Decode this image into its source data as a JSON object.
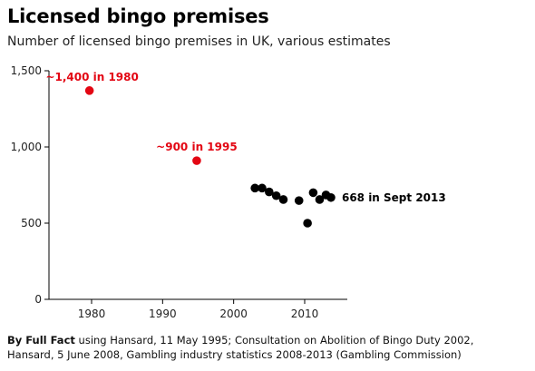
{
  "title": "Licensed bingo premises",
  "subtitle": "Number of licensed bingo premises in UK, various estimates",
  "footer": {
    "bold": "By Full Fact",
    "rest": " using Hansard, 11 May 1995; Consultation on Abolition of Bingo Duty 2002,",
    "line2": "Hansard, 5 June 2008, Gambling industry statistics 2008-2013 (Gambling Commission)"
  },
  "chart_data": {
    "type": "scatter",
    "title": "Licensed bingo premises",
    "subtitle": "Number of licensed bingo premises in UK, various estimates",
    "xlabel": "",
    "ylabel": "",
    "xlim": [
      1974,
      2016
    ],
    "ylim": [
      0,
      1500
    ],
    "xticks": [
      1980,
      1990,
      2000,
      2010
    ],
    "yticks": [
      0,
      500,
      1000,
      1500
    ],
    "ytick_labels": [
      "0",
      "500",
      "1,000",
      "1,500"
    ],
    "grid": false,
    "highlight_color": "#e30613",
    "point_color": "#000000",
    "highlighted_points": [
      {
        "x": 1979.7,
        "y": 1370,
        "label": "~1,400 in 1980"
      },
      {
        "x": 1994.8,
        "y": 910,
        "label": "~900 in 1995"
      }
    ],
    "points": [
      {
        "x": 2003.0,
        "y": 730
      },
      {
        "x": 2004.0,
        "y": 730
      },
      {
        "x": 2005.0,
        "y": 705
      },
      {
        "x": 2006.0,
        "y": 680
      },
      {
        "x": 2007.0,
        "y": 655
      },
      {
        "x": 2009.2,
        "y": 648
      },
      {
        "x": 2010.4,
        "y": 500
      },
      {
        "x": 2011.2,
        "y": 700
      },
      {
        "x": 2012.1,
        "y": 655
      },
      {
        "x": 2013.0,
        "y": 685
      },
      {
        "x": 2013.7,
        "y": 668
      }
    ],
    "end_label": "668 in Sept 2013"
  }
}
